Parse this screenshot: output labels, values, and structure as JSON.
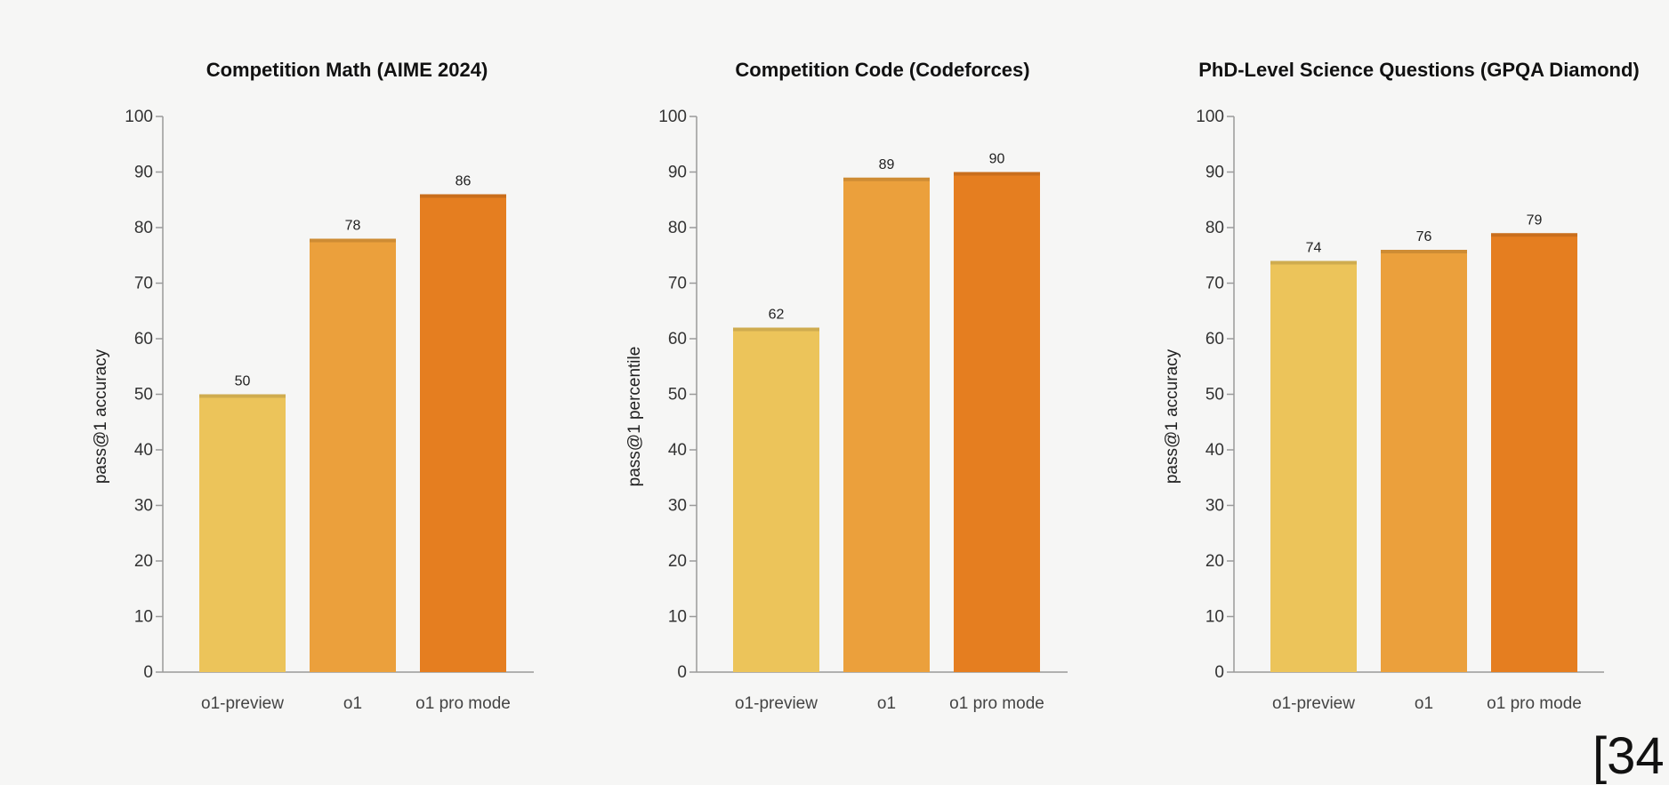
{
  "chart_data": [
    {
      "type": "bar",
      "title": "Competition Math (AIME 2024)",
      "ylabel": "pass@1 accuracy",
      "xlabel": "",
      "categories": [
        "o1-preview",
        "o1",
        "o1 pro mode"
      ],
      "values": [
        50,
        78,
        86
      ],
      "ylim": [
        0,
        100
      ],
      "yticks": [
        0,
        10,
        20,
        30,
        40,
        50,
        60,
        70,
        80,
        90,
        100
      ],
      "grid": false,
      "colors": [
        "#ecc45a",
        "#eba03c",
        "#e57e20"
      ]
    },
    {
      "type": "bar",
      "title": "Competition Code (Codeforces)",
      "ylabel": "pass@1 percentile",
      "xlabel": "",
      "categories": [
        "o1-preview",
        "o1",
        "o1 pro mode"
      ],
      "values": [
        62,
        89,
        90
      ],
      "ylim": [
        0,
        100
      ],
      "yticks": [
        0,
        10,
        20,
        30,
        40,
        50,
        60,
        70,
        80,
        90,
        100
      ],
      "grid": false,
      "colors": [
        "#ecc45a",
        "#eba03c",
        "#e57e20"
      ]
    },
    {
      "type": "bar",
      "title": "PhD-Level Science Questions (GPQA Diamond)",
      "ylabel": "pass@1 accuracy",
      "xlabel": "",
      "categories": [
        "o1-preview",
        "o1",
        "o1 pro mode"
      ],
      "values": [
        74,
        76,
        79
      ],
      "ylim": [
        0,
        100
      ],
      "yticks": [
        0,
        10,
        20,
        30,
        40,
        50,
        60,
        70,
        80,
        90,
        100
      ],
      "grid": false,
      "colors": [
        "#ecc45a",
        "#eba03c",
        "#e57e20"
      ]
    }
  ],
  "reference_mark": "[34"
}
